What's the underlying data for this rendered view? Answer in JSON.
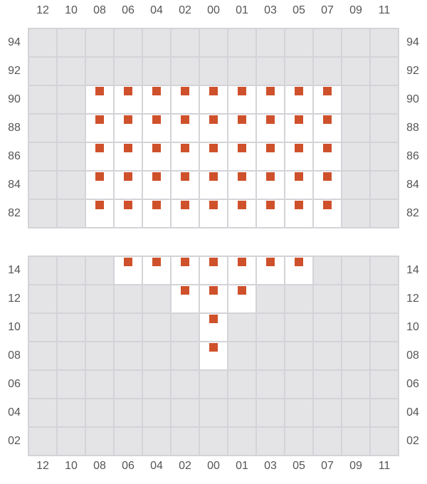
{
  "columns": [
    "12",
    "10",
    "08",
    "06",
    "04",
    "02",
    "00",
    "01",
    "03",
    "05",
    "07",
    "09",
    "11"
  ],
  "marker_color": "#cf512b",
  "sections": [
    {
      "name": "upper",
      "rows": [
        "94",
        "92",
        "90",
        "88",
        "86",
        "84",
        "82"
      ],
      "open": {
        "90": [
          "08",
          "06",
          "04",
          "02",
          "00",
          "01",
          "03",
          "05",
          "07"
        ],
        "88": [
          "08",
          "06",
          "04",
          "02",
          "00",
          "01",
          "03",
          "05",
          "07"
        ],
        "86": [
          "08",
          "06",
          "04",
          "02",
          "00",
          "01",
          "03",
          "05",
          "07"
        ],
        "84": [
          "08",
          "06",
          "04",
          "02",
          "00",
          "01",
          "03",
          "05",
          "07"
        ],
        "82": [
          "08",
          "06",
          "04",
          "02",
          "00",
          "01",
          "03",
          "05",
          "07"
        ]
      }
    },
    {
      "name": "lower",
      "rows": [
        "14",
        "12",
        "10",
        "08",
        "06",
        "04",
        "02"
      ],
      "open": {
        "14": [
          "06",
          "04",
          "02",
          "00",
          "01",
          "03",
          "05"
        ],
        "12": [
          "02",
          "00",
          "01"
        ],
        "10": [
          "00"
        ],
        "08": [
          "00"
        ]
      }
    }
  ]
}
